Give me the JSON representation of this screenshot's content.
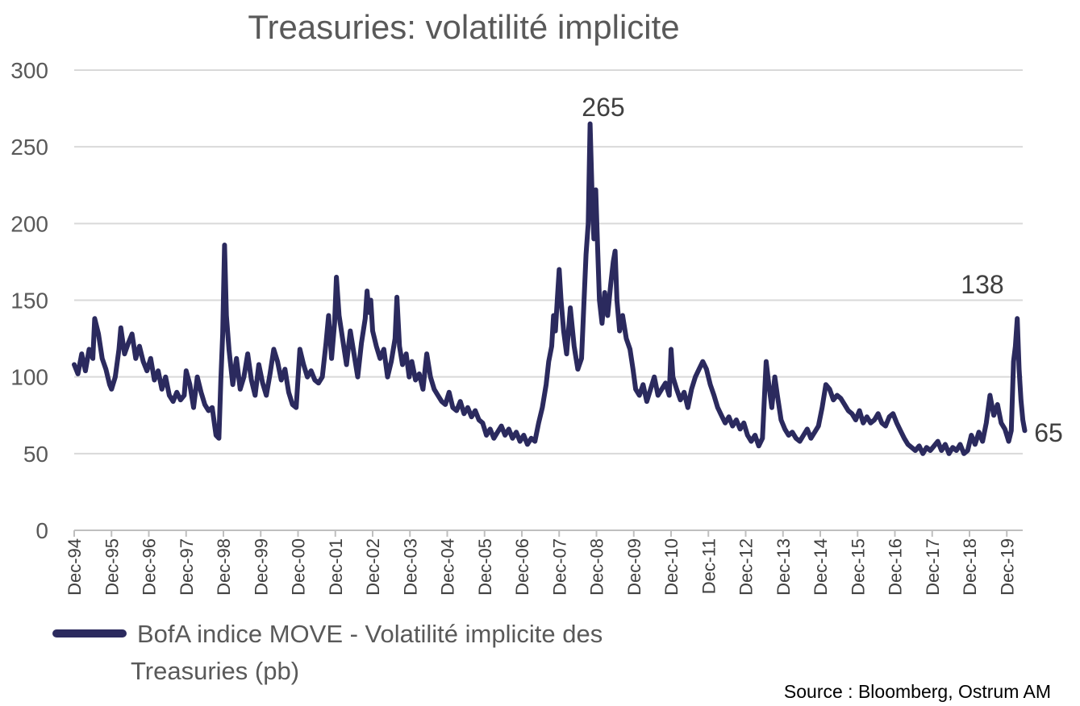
{
  "chart_data": {
    "type": "line",
    "title": "Treasuries: volatilité implicite",
    "xlabel": "",
    "ylabel": "",
    "ylim": [
      0,
      300
    ],
    "yticks": [
      "0",
      "50",
      "100",
      "150",
      "200",
      "250",
      "300"
    ],
    "categories": [
      "Dec-94",
      "Dec-95",
      "Dec-96",
      "Dec-97",
      "Dec-98",
      "Dec-99",
      "Dec-00",
      "Dec-01",
      "Dec-02",
      "Dec-03",
      "Dec-04",
      "Dec-05",
      "Dec-06",
      "Dec-07",
      "Dec-08",
      "Dec-09",
      "Dec-10",
      "Dec-11",
      "Dec-12",
      "Dec-13",
      "Dec-14",
      "Dec-15",
      "Dec-16",
      "Dec-17",
      "Dec-18",
      "Dec-19"
    ],
    "grid": true,
    "legend_position": "bottom-left",
    "series": [
      {
        "name": "BofA indice MOVE - Volatilité implicite des Treasuries (pb)",
        "color": "#2b2a5e",
        "points": [
          [
            0,
            108
          ],
          [
            0.1,
            102
          ],
          [
            0.2,
            115
          ],
          [
            0.3,
            104
          ],
          [
            0.4,
            118
          ],
          [
            0.5,
            112
          ],
          [
            0.55,
            138
          ],
          [
            0.65,
            128
          ],
          [
            0.75,
            112
          ],
          [
            0.85,
            105
          ],
          [
            0.95,
            95
          ],
          [
            1.0,
            92
          ],
          [
            1.1,
            100
          ],
          [
            1.2,
            118
          ],
          [
            1.25,
            132
          ],
          [
            1.35,
            115
          ],
          [
            1.45,
            122
          ],
          [
            1.55,
            128
          ],
          [
            1.65,
            112
          ],
          [
            1.75,
            120
          ],
          [
            1.85,
            110
          ],
          [
            1.95,
            104
          ],
          [
            2.05,
            112
          ],
          [
            2.15,
            98
          ],
          [
            2.25,
            104
          ],
          [
            2.35,
            92
          ],
          [
            2.45,
            100
          ],
          [
            2.55,
            88
          ],
          [
            2.65,
            84
          ],
          [
            2.75,
            90
          ],
          [
            2.85,
            85
          ],
          [
            2.95,
            88
          ],
          [
            3.0,
            104
          ],
          [
            3.1,
            95
          ],
          [
            3.2,
            80
          ],
          [
            3.3,
            100
          ],
          [
            3.4,
            90
          ],
          [
            3.5,
            82
          ],
          [
            3.6,
            78
          ],
          [
            3.7,
            80
          ],
          [
            3.8,
            62
          ],
          [
            3.88,
            60
          ],
          [
            3.93,
            98
          ],
          [
            3.98,
            128
          ],
          [
            4.03,
            186
          ],
          [
            4.08,
            140
          ],
          [
            4.15,
            118
          ],
          [
            4.25,
            95
          ],
          [
            4.35,
            112
          ],
          [
            4.45,
            92
          ],
          [
            4.55,
            100
          ],
          [
            4.65,
            115
          ],
          [
            4.75,
            98
          ],
          [
            4.85,
            88
          ],
          [
            4.95,
            108
          ],
          [
            5.05,
            96
          ],
          [
            5.15,
            88
          ],
          [
            5.25,
            102
          ],
          [
            5.35,
            118
          ],
          [
            5.45,
            110
          ],
          [
            5.55,
            98
          ],
          [
            5.65,
            105
          ],
          [
            5.75,
            90
          ],
          [
            5.85,
            82
          ],
          [
            5.95,
            80
          ],
          [
            6.05,
            118
          ],
          [
            6.15,
            108
          ],
          [
            6.25,
            100
          ],
          [
            6.35,
            104
          ],
          [
            6.45,
            98
          ],
          [
            6.55,
            96
          ],
          [
            6.65,
            100
          ],
          [
            6.75,
            122
          ],
          [
            6.82,
            140
          ],
          [
            6.9,
            112
          ],
          [
            6.98,
            135
          ],
          [
            7.03,
            165
          ],
          [
            7.1,
            140
          ],
          [
            7.2,
            124
          ],
          [
            7.3,
            108
          ],
          [
            7.4,
            130
          ],
          [
            7.5,
            115
          ],
          [
            7.6,
            100
          ],
          [
            7.7,
            122
          ],
          [
            7.8,
            138
          ],
          [
            7.85,
            156
          ],
          [
            7.9,
            142
          ],
          [
            7.95,
            150
          ],
          [
            8.0,
            130
          ],
          [
            8.1,
            120
          ],
          [
            8.2,
            112
          ],
          [
            8.3,
            118
          ],
          [
            8.4,
            100
          ],
          [
            8.5,
            110
          ],
          [
            8.6,
            125
          ],
          [
            8.65,
            152
          ],
          [
            8.72,
            120
          ],
          [
            8.8,
            108
          ],
          [
            8.9,
            115
          ],
          [
            8.98,
            100
          ],
          [
            9.05,
            110
          ],
          [
            9.15,
            98
          ],
          [
            9.25,
            102
          ],
          [
            9.35,
            92
          ],
          [
            9.45,
            115
          ],
          [
            9.55,
            100
          ],
          [
            9.65,
            92
          ],
          [
            9.75,
            88
          ],
          [
            9.85,
            84
          ],
          [
            9.95,
            82
          ],
          [
            10.05,
            90
          ],
          [
            10.15,
            80
          ],
          [
            10.25,
            78
          ],
          [
            10.35,
            84
          ],
          [
            10.45,
            76
          ],
          [
            10.55,
            80
          ],
          [
            10.65,
            74
          ],
          [
            10.75,
            78
          ],
          [
            10.85,
            72
          ],
          [
            10.95,
            70
          ],
          [
            11.05,
            62
          ],
          [
            11.15,
            66
          ],
          [
            11.25,
            60
          ],
          [
            11.35,
            64
          ],
          [
            11.45,
            68
          ],
          [
            11.55,
            62
          ],
          [
            11.65,
            66
          ],
          [
            11.75,
            60
          ],
          [
            11.85,
            64
          ],
          [
            11.95,
            58
          ],
          [
            12.05,
            62
          ],
          [
            12.15,
            56
          ],
          [
            12.25,
            60
          ],
          [
            12.35,
            58
          ],
          [
            12.45,
            70
          ],
          [
            12.55,
            80
          ],
          [
            12.65,
            95
          ],
          [
            12.72,
            110
          ],
          [
            12.8,
            120
          ],
          [
            12.85,
            140
          ],
          [
            12.9,
            130
          ],
          [
            12.95,
            150
          ],
          [
            13.0,
            170
          ],
          [
            13.05,
            150
          ],
          [
            13.12,
            130
          ],
          [
            13.2,
            115
          ],
          [
            13.3,
            145
          ],
          [
            13.4,
            120
          ],
          [
            13.5,
            105
          ],
          [
            13.6,
            112
          ],
          [
            13.65,
            140
          ],
          [
            13.72,
            180
          ],
          [
            13.78,
            200
          ],
          [
            13.83,
            265
          ],
          [
            13.88,
            220
          ],
          [
            13.93,
            190
          ],
          [
            13.98,
            222
          ],
          [
            14.03,
            185
          ],
          [
            14.08,
            150
          ],
          [
            14.15,
            135
          ],
          [
            14.22,
            155
          ],
          [
            14.3,
            140
          ],
          [
            14.38,
            160
          ],
          [
            14.45,
            175
          ],
          [
            14.5,
            182
          ],
          [
            14.55,
            150
          ],
          [
            14.62,
            130
          ],
          [
            14.7,
            140
          ],
          [
            14.8,
            125
          ],
          [
            14.9,
            118
          ],
          [
            14.98,
            105
          ],
          [
            15.05,
            92
          ],
          [
            15.15,
            88
          ],
          [
            15.25,
            95
          ],
          [
            15.35,
            84
          ],
          [
            15.45,
            92
          ],
          [
            15.55,
            100
          ],
          [
            15.65,
            88
          ],
          [
            15.75,
            92
          ],
          [
            15.85,
            96
          ],
          [
            15.95,
            88
          ],
          [
            16.0,
            118
          ],
          [
            16.05,
            100
          ],
          [
            16.15,
            92
          ],
          [
            16.25,
            85
          ],
          [
            16.35,
            90
          ],
          [
            16.45,
            80
          ],
          [
            16.55,
            92
          ],
          [
            16.65,
            100
          ],
          [
            16.75,
            105
          ],
          [
            16.85,
            110
          ],
          [
            16.95,
            105
          ],
          [
            17.05,
            95
          ],
          [
            17.15,
            88
          ],
          [
            17.25,
            80
          ],
          [
            17.35,
            75
          ],
          [
            17.45,
            70
          ],
          [
            17.55,
            74
          ],
          [
            17.65,
            68
          ],
          [
            17.75,
            72
          ],
          [
            17.85,
            66
          ],
          [
            17.95,
            70
          ],
          [
            18.05,
            62
          ],
          [
            18.15,
            58
          ],
          [
            18.25,
            62
          ],
          [
            18.35,
            55
          ],
          [
            18.45,
            60
          ],
          [
            18.5,
            85
          ],
          [
            18.55,
            110
          ],
          [
            18.62,
            95
          ],
          [
            18.7,
            80
          ],
          [
            18.78,
            100
          ],
          [
            18.85,
            88
          ],
          [
            18.95,
            72
          ],
          [
            19.05,
            66
          ],
          [
            19.15,
            62
          ],
          [
            19.25,
            64
          ],
          [
            19.35,
            60
          ],
          [
            19.45,
            58
          ],
          [
            19.55,
            62
          ],
          [
            19.65,
            66
          ],
          [
            19.75,
            60
          ],
          [
            19.85,
            64
          ],
          [
            19.95,
            68
          ],
          [
            20.05,
            80
          ],
          [
            20.15,
            95
          ],
          [
            20.25,
            92
          ],
          [
            20.35,
            85
          ],
          [
            20.45,
            88
          ],
          [
            20.55,
            86
          ],
          [
            20.65,
            82
          ],
          [
            20.75,
            78
          ],
          [
            20.85,
            76
          ],
          [
            20.95,
            72
          ],
          [
            21.05,
            78
          ],
          [
            21.15,
            70
          ],
          [
            21.25,
            74
          ],
          [
            21.35,
            70
          ],
          [
            21.45,
            72
          ],
          [
            21.55,
            76
          ],
          [
            21.65,
            70
          ],
          [
            21.75,
            68
          ],
          [
            21.85,
            74
          ],
          [
            21.95,
            76
          ],
          [
            22.05,
            70
          ],
          [
            22.15,
            65
          ],
          [
            22.25,
            60
          ],
          [
            22.35,
            56
          ],
          [
            22.45,
            54
          ],
          [
            22.55,
            52
          ],
          [
            22.65,
            55
          ],
          [
            22.75,
            50
          ],
          [
            22.85,
            54
          ],
          [
            22.95,
            52
          ],
          [
            23.05,
            55
          ],
          [
            23.15,
            58
          ],
          [
            23.25,
            52
          ],
          [
            23.35,
            56
          ],
          [
            23.45,
            50
          ],
          [
            23.55,
            54
          ],
          [
            23.65,
            52
          ],
          [
            23.75,
            56
          ],
          [
            23.85,
            50
          ],
          [
            23.95,
            52
          ],
          [
            24.05,
            62
          ],
          [
            24.15,
            56
          ],
          [
            24.25,
            64
          ],
          [
            24.35,
            58
          ],
          [
            24.45,
            70
          ],
          [
            24.55,
            88
          ],
          [
            24.65,
            75
          ],
          [
            24.75,
            82
          ],
          [
            24.85,
            70
          ],
          [
            24.95,
            66
          ],
          [
            25.05,
            58
          ],
          [
            25.12,
            65
          ],
          [
            25.18,
            110
          ],
          [
            25.23,
            120
          ],
          [
            25.28,
            138
          ],
          [
            25.33,
            105
          ],
          [
            25.38,
            85
          ],
          [
            25.43,
            72
          ],
          [
            25.48,
            65
          ]
        ]
      }
    ],
    "annotations": [
      {
        "text": "265",
        "at": "peak Dec-08"
      },
      {
        "text": "138",
        "at": "peak 2020"
      },
      {
        "text": "65",
        "at": "last value"
      }
    ],
    "source": "Source : Bloomberg, Ostrum AM"
  }
}
